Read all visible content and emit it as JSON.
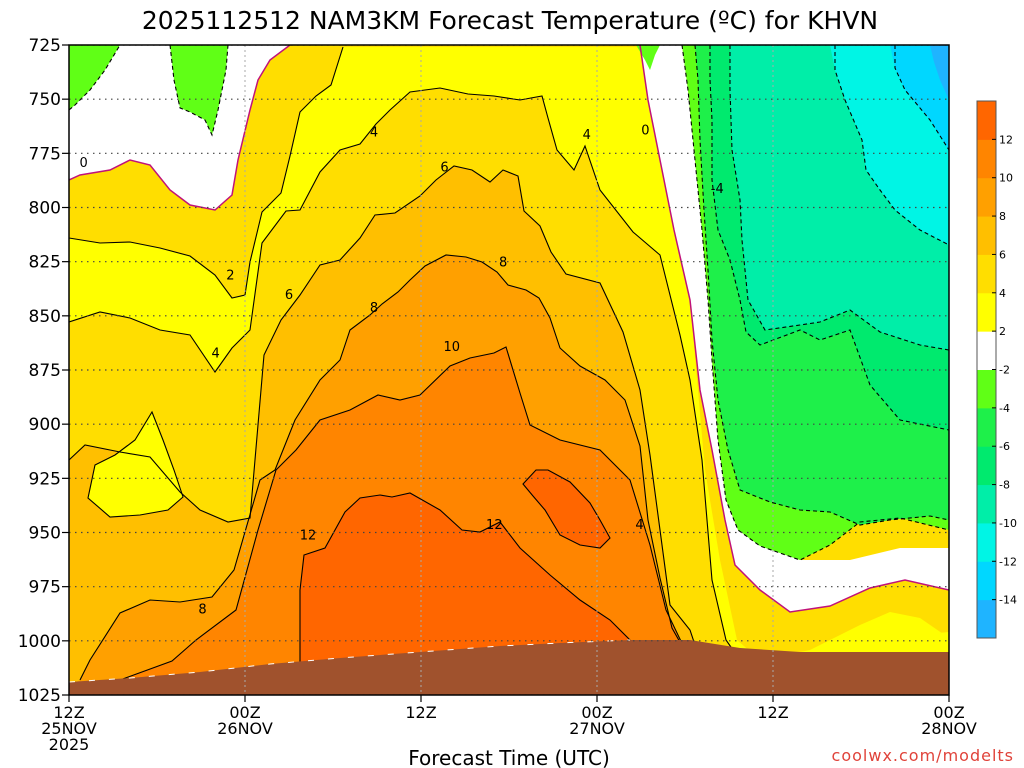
{
  "chart_data": {
    "type": "heatmap",
    "title": "2025112512 NAM3KM Forecast Temperature (ºC) for KHVN",
    "xlabel": "Forecast Time (UTC)",
    "ylabel": "",
    "y_levels_hpa": [
      725,
      750,
      775,
      800,
      825,
      850,
      875,
      900,
      925,
      950,
      975,
      1000,
      1025
    ],
    "x_ticks": [
      {
        "hour": 0,
        "lines": [
          "12Z",
          "25NOV",
          "2025"
        ]
      },
      {
        "hour": 12,
        "lines": [
          "00Z",
          "26NOV"
        ]
      },
      {
        "hour": 24,
        "lines": [
          "12Z"
        ]
      },
      {
        "hour": 36,
        "lines": [
          "00Z",
          "27NOV"
        ]
      },
      {
        "hour": 48,
        "lines": [
          "12Z"
        ]
      },
      {
        "hour": 60,
        "lines": [
          "00Z",
          "28NOV"
        ]
      }
    ],
    "xlim_hours": [
      0,
      60
    ],
    "ylim_hpa": [
      725,
      1025
    ],
    "colorbar": {
      "levels": [
        -16,
        -14,
        -12,
        -10,
        -8,
        -6,
        -4,
        -2,
        2,
        4,
        6,
        8,
        10,
        12,
        14
      ],
      "tick_labels": [
        "-14",
        "-12",
        "-10",
        "-8",
        "-6",
        "-4",
        "-2",
        "2",
        "4",
        "6",
        "8",
        "10",
        "12"
      ],
      "colors": [
        "#1fb4ff",
        "#00d7ff",
        "#00f5e5",
        "#00eea8",
        "#00ea6e",
        "#1ef04a",
        "#60ff16",
        "#ffffff",
        "#ffff00",
        "#ffde00",
        "#ffbf00",
        "#ffa000",
        "#ff8500",
        "#ff6600"
      ]
    },
    "grid": true,
    "contour_labels": [
      {
        "text": "0",
        "hour": 1.0,
        "hpa": 779
      },
      {
        "text": "0",
        "hour": 39.3,
        "hpa": 764
      },
      {
        "text": "4",
        "hour": 20.8,
        "hpa": 765
      },
      {
        "text": "4",
        "hour": 35.3,
        "hpa": 766
      },
      {
        "text": "6",
        "hour": 25.6,
        "hpa": 781
      },
      {
        "text": "-4",
        "hour": 44.2,
        "hpa": 791
      },
      {
        "text": "2",
        "hour": 11.0,
        "hpa": 831
      },
      {
        "text": "6",
        "hour": 15.0,
        "hpa": 840
      },
      {
        "text": "8",
        "hour": 20.8,
        "hpa": 846
      },
      {
        "text": "8",
        "hour": 29.6,
        "hpa": 825
      },
      {
        "text": "4",
        "hour": 10.0,
        "hpa": 867
      },
      {
        "text": "10",
        "hour": 26.1,
        "hpa": 864
      },
      {
        "text": "12",
        "hour": 16.3,
        "hpa": 951
      },
      {
        "text": "12",
        "hour": 29.0,
        "hpa": 946
      },
      {
        "text": "4",
        "hour": 38.9,
        "hpa": 946
      },
      {
        "text": "8",
        "hour": 9.1,
        "hpa": 985
      }
    ],
    "terrain_color": "#a0522d"
  },
  "credit": "coolwx.com/modelts"
}
